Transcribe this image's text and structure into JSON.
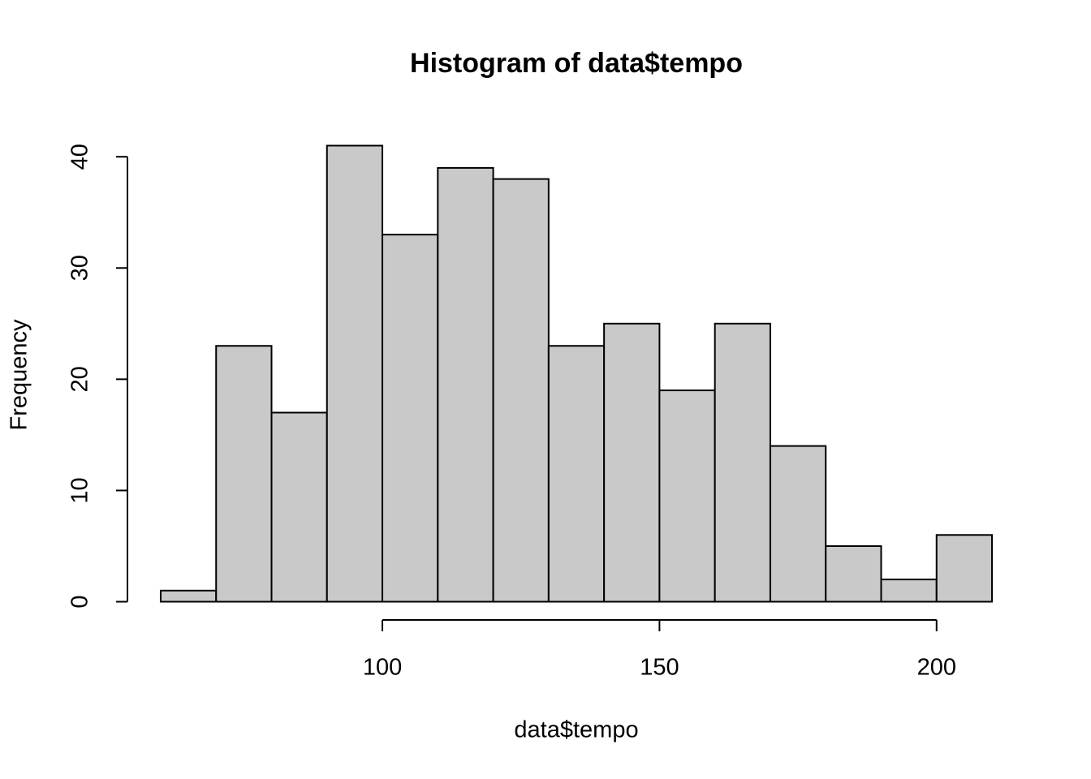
{
  "chart_data": {
    "type": "histogram",
    "title": "Histogram of data$tempo",
    "x_label": "data$tempo",
    "y_label": "Frequency",
    "bins": [
      60,
      70,
      80,
      90,
      100,
      110,
      120,
      130,
      140,
      150,
      160,
      170,
      180,
      190,
      200,
      210
    ],
    "values": [
      1,
      23,
      17,
      41,
      33,
      39,
      38,
      23,
      25,
      19,
      25,
      14,
      5,
      2,
      6
    ],
    "color": "#c9c9c9",
    "xlim": [
      54,
      216
    ],
    "xticks": [
      100,
      150,
      200
    ],
    "ylim": [
      -1.64,
      42.64
    ],
    "yticks": [
      0,
      10,
      20,
      30,
      40
    ]
  }
}
